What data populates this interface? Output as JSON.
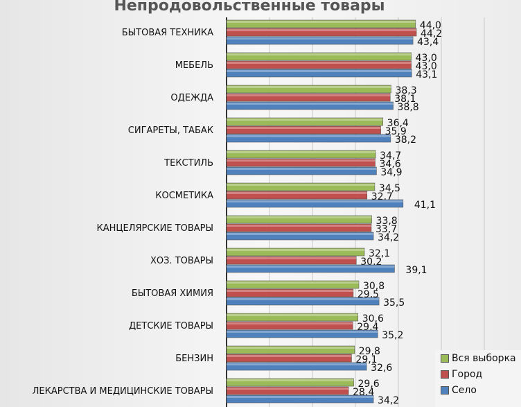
{
  "chart_data": {
    "type": "bar",
    "orientation": "horizontal",
    "title": "Непродовольственные товары",
    "categories": [
      "БЫТОВАЯ ТЕХНИКА",
      "МЕБЕЛЬ",
      "ОДЕЖДА",
      "СИГАРЕТЫ, ТАБАК",
      "ТЕКСТИЛЬ",
      "КОСМЕТИКА",
      "КАНЦЕЛЯРСКИЕ ТОВАРЫ",
      "ХОЗ. ТОВАРЫ",
      "БЫТОВАЯ ХИМИЯ",
      "ДЕТСКИЕ ТОВАРЫ",
      "БЕНЗИН",
      "ЛЕКАРСТВА И МЕДИЦИНСКИЕ ТОВАРЫ"
    ],
    "series": [
      {
        "name": "Вся выборка",
        "color": "#9bbb59",
        "values": [
          44.0,
          43.0,
          38.3,
          36.4,
          34.7,
          34.5,
          33.8,
          32.1,
          30.8,
          30.6,
          29.8,
          29.6
        ]
      },
      {
        "name": "Город",
        "color": "#c0504d",
        "values": [
          44.2,
          43.0,
          38.1,
          35.9,
          34.6,
          32.7,
          33.7,
          30.2,
          29.5,
          29.4,
          29.1,
          28.4
        ]
      },
      {
        "name": "Село",
        "color": "#4f81bd",
        "values": [
          43.4,
          43.1,
          38.8,
          38.2,
          34.9,
          41.1,
          34.2,
          39.1,
          35.5,
          35.2,
          32.6,
          34.2
        ]
      }
    ],
    "xlim": [
      0,
      70
    ],
    "grid": true,
    "legend": "bottom-right"
  }
}
